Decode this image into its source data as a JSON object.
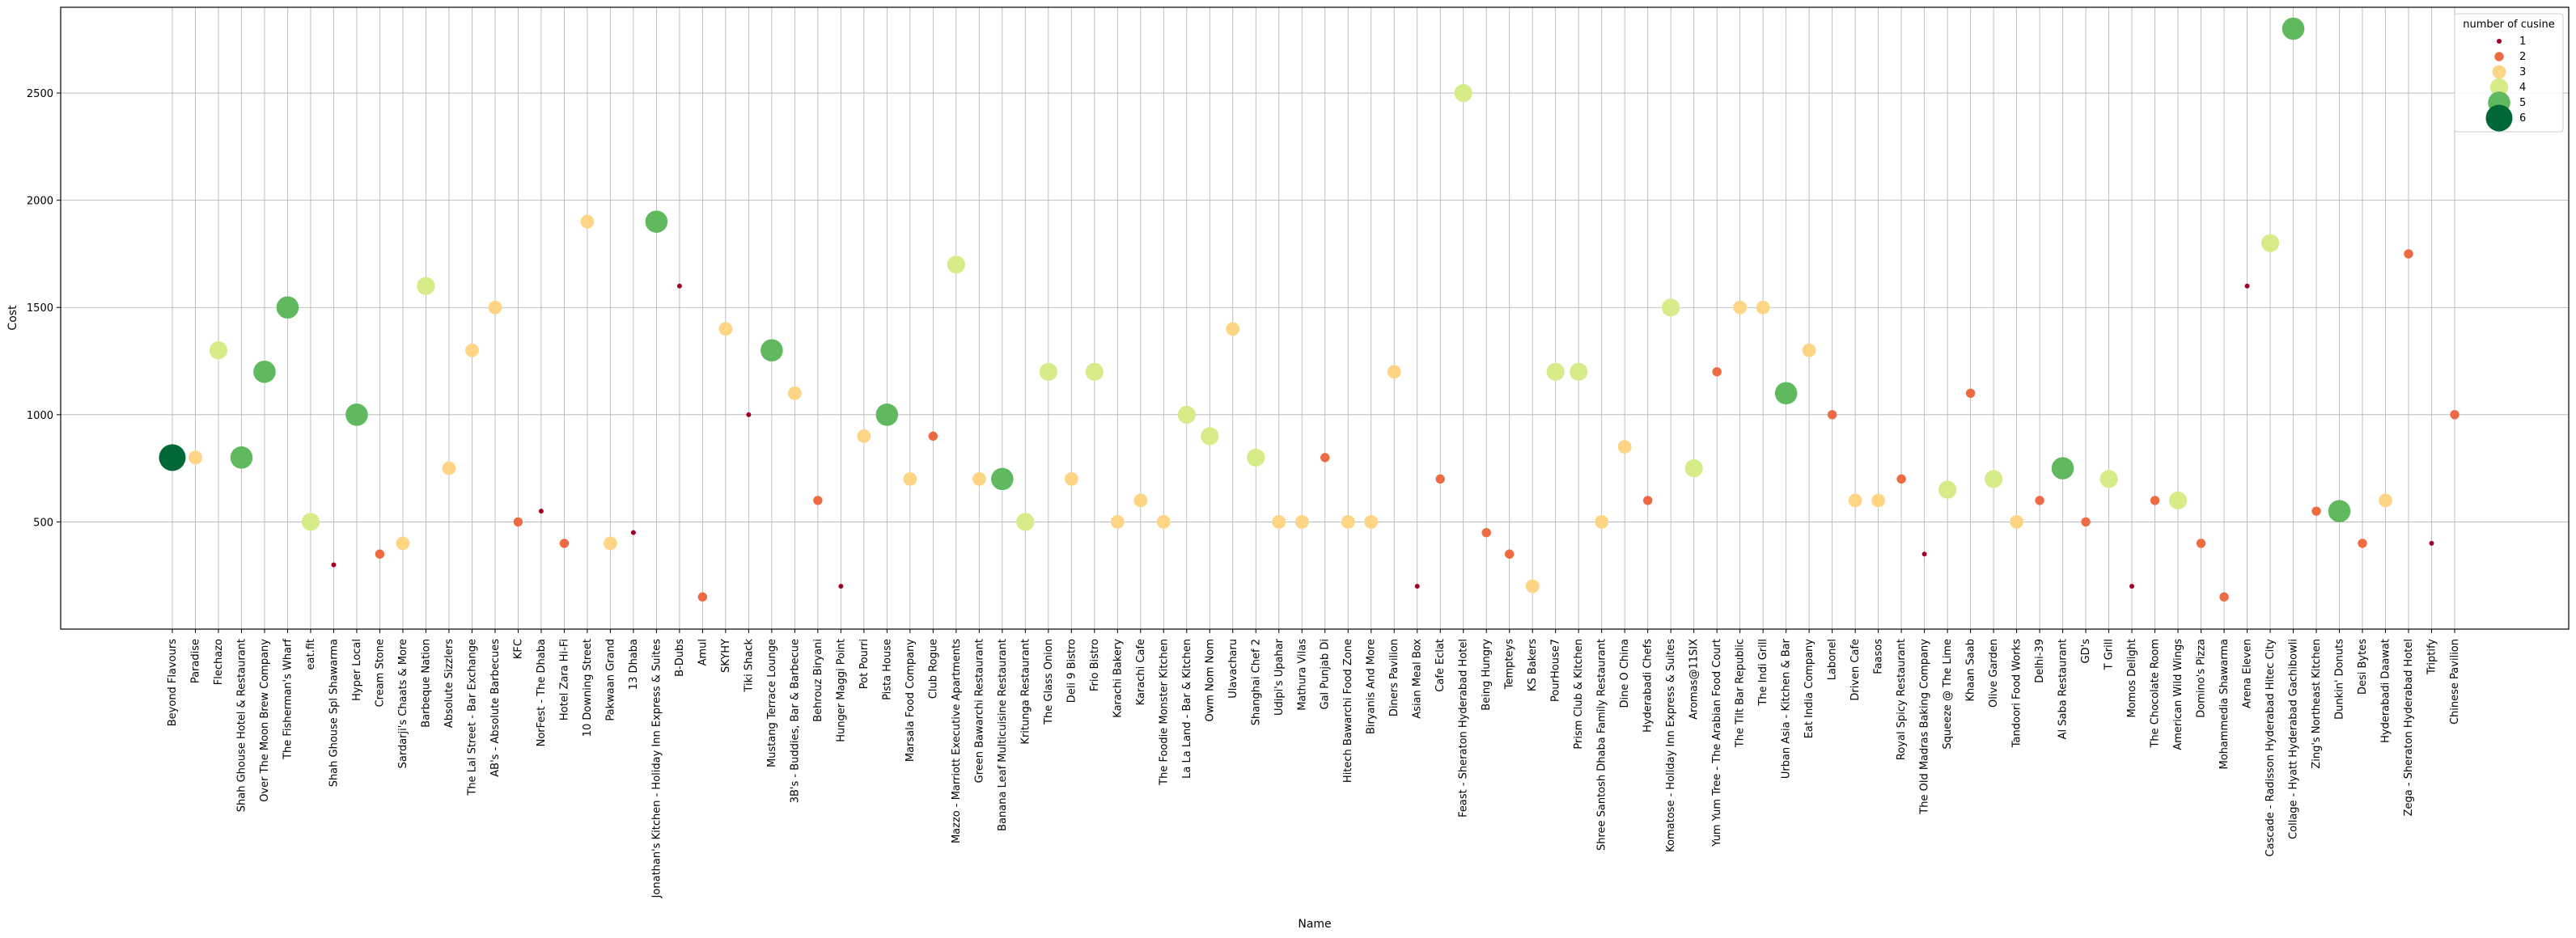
{
  "chart_data": {
    "type": "scatter",
    "title": "",
    "xlabel": "Name",
    "ylabel": "Cost",
    "ylim": [
      0,
      2900
    ],
    "yticks": [
      500,
      1000,
      1500,
      2000,
      2500
    ],
    "grid": true,
    "legend": {
      "title": "number of cusine",
      "placement": "top-right",
      "entries": [
        {
          "label": "1",
          "value": 1,
          "color": "#a50026"
        },
        {
          "label": "2",
          "value": 2,
          "color": "#ee6a43"
        },
        {
          "label": "3",
          "value": 3,
          "color": "#fdd584"
        },
        {
          "label": "4",
          "value": 4,
          "color": "#d5ec89"
        },
        {
          "label": "5",
          "value": 5,
          "color": "#60b95f"
        },
        {
          "label": "6",
          "value": 6,
          "color": "#006837"
        }
      ]
    },
    "points": [
      {
        "name": "Beyond Flavours",
        "cost": 800,
        "cuisines": 6
      },
      {
        "name": "Paradise",
        "cost": 800,
        "cuisines": 3
      },
      {
        "name": "Flechazo",
        "cost": 1300,
        "cuisines": 4
      },
      {
        "name": "Shah Ghouse Hotel & Restaurant",
        "cost": 800,
        "cuisines": 5
      },
      {
        "name": "Over The Moon Brew Company",
        "cost": 1200,
        "cuisines": 5
      },
      {
        "name": "The Fisherman's Wharf",
        "cost": 1500,
        "cuisines": 5
      },
      {
        "name": "eat.fit",
        "cost": 500,
        "cuisines": 4
      },
      {
        "name": "Shah Ghouse Spl Shawarma",
        "cost": 300,
        "cuisines": 1
      },
      {
        "name": "Hyper Local",
        "cost": 1000,
        "cuisines": 5
      },
      {
        "name": "Cream Stone",
        "cost": 350,
        "cuisines": 2
      },
      {
        "name": "Sardarji's Chaats & More",
        "cost": 400,
        "cuisines": 3
      },
      {
        "name": "Barbeque Nation",
        "cost": 1600,
        "cuisines": 4
      },
      {
        "name": "Absolute Sizzlers",
        "cost": 750,
        "cuisines": 3
      },
      {
        "name": "The Lal Street - Bar Exchange",
        "cost": 1300,
        "cuisines": 3
      },
      {
        "name": "AB's - Absolute Barbecues",
        "cost": 1500,
        "cuisines": 3
      },
      {
        "name": "KFC",
        "cost": 500,
        "cuisines": 2
      },
      {
        "name": "NorFest - The Dhaba",
        "cost": 550,
        "cuisines": 1
      },
      {
        "name": "Hotel Zara Hi-Fi",
        "cost": 400,
        "cuisines": 2
      },
      {
        "name": "10 Downing Street",
        "cost": 1900,
        "cuisines": 3
      },
      {
        "name": "Pakwaan Grand",
        "cost": 400,
        "cuisines": 3
      },
      {
        "name": "13 Dhaba",
        "cost": 450,
        "cuisines": 1
      },
      {
        "name": "Jonathan's Kitchen - Holiday Inn Express & Suites",
        "cost": 1900,
        "cuisines": 5
      },
      {
        "name": "B-Dubs",
        "cost": 1600,
        "cuisines": 1
      },
      {
        "name": "Amul",
        "cost": 150,
        "cuisines": 2
      },
      {
        "name": "SKYHY",
        "cost": 1400,
        "cuisines": 3
      },
      {
        "name": "Tiki Shack",
        "cost": 1000,
        "cuisines": 1
      },
      {
        "name": "Mustang Terrace Lounge",
        "cost": 1300,
        "cuisines": 5
      },
      {
        "name": "3B's - Buddies, Bar & Barbecue",
        "cost": 1100,
        "cuisines": 3
      },
      {
        "name": "Behrouz Biryani",
        "cost": 600,
        "cuisines": 2
      },
      {
        "name": "Hunger Maggi Point",
        "cost": 200,
        "cuisines": 1
      },
      {
        "name": "Pot Pourri",
        "cost": 900,
        "cuisines": 3
      },
      {
        "name": "Pista House",
        "cost": 1000,
        "cuisines": 5
      },
      {
        "name": "Marsala Food Company",
        "cost": 700,
        "cuisines": 3
      },
      {
        "name": "Club Rogue",
        "cost": 900,
        "cuisines": 2
      },
      {
        "name": "Mazzo - Marriott Executive Apartments",
        "cost": 1700,
        "cuisines": 4
      },
      {
        "name": "Green Bawarchi Restaurant",
        "cost": 700,
        "cuisines": 3
      },
      {
        "name": "Banana Leaf Multicuisine Restaurant",
        "cost": 700,
        "cuisines": 5
      },
      {
        "name": "Kritunga Restaurant",
        "cost": 500,
        "cuisines": 4
      },
      {
        "name": "The Glass Onion",
        "cost": 1200,
        "cuisines": 4
      },
      {
        "name": "Deli 9 Bistro",
        "cost": 700,
        "cuisines": 3
      },
      {
        "name": "Frio Bistro",
        "cost": 1200,
        "cuisines": 4
      },
      {
        "name": "Karachi Bakery",
        "cost": 500,
        "cuisines": 3
      },
      {
        "name": "Karachi Cafe",
        "cost": 600,
        "cuisines": 3
      },
      {
        "name": "The Foodie Monster Kitchen",
        "cost": 500,
        "cuisines": 3
      },
      {
        "name": "La La Land - Bar & Kitchen",
        "cost": 1000,
        "cuisines": 4
      },
      {
        "name": "Owm Nom Nom",
        "cost": 900,
        "cuisines": 4
      },
      {
        "name": "Ulavacharu",
        "cost": 1400,
        "cuisines": 3
      },
      {
        "name": "Shanghai Chef 2",
        "cost": 800,
        "cuisines": 4
      },
      {
        "name": "Udipi's Upahar",
        "cost": 500,
        "cuisines": 3
      },
      {
        "name": "Mathura Vilas",
        "cost": 500,
        "cuisines": 3
      },
      {
        "name": "Gal Punjab Di",
        "cost": 800,
        "cuisines": 2
      },
      {
        "name": "Hitech Bawarchi Food Zone",
        "cost": 500,
        "cuisines": 3
      },
      {
        "name": "Biryanis And More",
        "cost": 500,
        "cuisines": 3
      },
      {
        "name": "Diners Pavilion",
        "cost": 1200,
        "cuisines": 3
      },
      {
        "name": "Asian Meal Box",
        "cost": 200,
        "cuisines": 1
      },
      {
        "name": "Cafe Eclat",
        "cost": 700,
        "cuisines": 2
      },
      {
        "name": "Feast - Sheraton Hyderabad Hotel",
        "cost": 2500,
        "cuisines": 4
      },
      {
        "name": "Being Hungry",
        "cost": 450,
        "cuisines": 2
      },
      {
        "name": "Tempteys",
        "cost": 350,
        "cuisines": 2
      },
      {
        "name": "KS Bakers",
        "cost": 200,
        "cuisines": 3
      },
      {
        "name": "PourHouse7",
        "cost": 1200,
        "cuisines": 4
      },
      {
        "name": "Prism Club & Kitchen",
        "cost": 1200,
        "cuisines": 4
      },
      {
        "name": "Shree Santosh Dhaba Family Restaurant",
        "cost": 500,
        "cuisines": 3
      },
      {
        "name": "Dine O China",
        "cost": 850,
        "cuisines": 3
      },
      {
        "name": "Hyderabadi Chefs",
        "cost": 600,
        "cuisines": 2
      },
      {
        "name": "Komatose - Holiday Inn Express & Suites",
        "cost": 1500,
        "cuisines": 4
      },
      {
        "name": "Aromas@11SIX",
        "cost": 750,
        "cuisines": 4
      },
      {
        "name": "Yum Yum Tree - The Arabian Food Court",
        "cost": 1200,
        "cuisines": 2
      },
      {
        "name": "The Tilt Bar Republic",
        "cost": 1500,
        "cuisines": 3
      },
      {
        "name": "The Indi Grill",
        "cost": 1500,
        "cuisines": 3
      },
      {
        "name": "Urban Asia - Kitchen & Bar",
        "cost": 1100,
        "cuisines": 5
      },
      {
        "name": "Eat India Company",
        "cost": 1300,
        "cuisines": 3
      },
      {
        "name": "Labonel",
        "cost": 1000,
        "cuisines": 2
      },
      {
        "name": "Driven Cafe",
        "cost": 600,
        "cuisines": 3
      },
      {
        "name": "Faasos",
        "cost": 600,
        "cuisines": 3
      },
      {
        "name": "Royal Spicy Restaurant",
        "cost": 700,
        "cuisines": 2
      },
      {
        "name": "The Old Madras Baking Company",
        "cost": 350,
        "cuisines": 1
      },
      {
        "name": "Squeeze @ The Lime",
        "cost": 650,
        "cuisines": 4
      },
      {
        "name": "Khaan Saab",
        "cost": 1100,
        "cuisines": 2
      },
      {
        "name": "Olive Garden",
        "cost": 700,
        "cuisines": 4
      },
      {
        "name": "Tandoori Food Works",
        "cost": 500,
        "cuisines": 3
      },
      {
        "name": "Delhi-39",
        "cost": 600,
        "cuisines": 2
      },
      {
        "name": "Al Saba Restaurant",
        "cost": 750,
        "cuisines": 5
      },
      {
        "name": "GD's",
        "cost": 500,
        "cuisines": 2
      },
      {
        "name": "T Grill",
        "cost": 700,
        "cuisines": 4
      },
      {
        "name": "Momos Delight",
        "cost": 200,
        "cuisines": 1
      },
      {
        "name": "The Chocolate Room",
        "cost": 600,
        "cuisines": 2
      },
      {
        "name": "American Wild Wings",
        "cost": 600,
        "cuisines": 4
      },
      {
        "name": "Domino's Pizza",
        "cost": 400,
        "cuisines": 2
      },
      {
        "name": "Mohammedia Shawarma",
        "cost": 150,
        "cuisines": 2
      },
      {
        "name": "Arena Eleven",
        "cost": 1600,
        "cuisines": 1
      },
      {
        "name": "Cascade - Radisson Hyderabad Hitec City",
        "cost": 1800,
        "cuisines": 4
      },
      {
        "name": "Collage - Hyatt Hyderabad Gachibowli",
        "cost": 2800,
        "cuisines": 5
      },
      {
        "name": "Zing's Northeast Kitchen",
        "cost": 550,
        "cuisines": 2
      },
      {
        "name": "Dunkin' Donuts",
        "cost": 550,
        "cuisines": 5
      },
      {
        "name": "Desi Bytes",
        "cost": 400,
        "cuisines": 2
      },
      {
        "name": "Hyderabadi Daawat",
        "cost": 600,
        "cuisines": 3
      },
      {
        "name": "Zega - Sheraton Hyderabad Hotel",
        "cost": 1750,
        "cuisines": 2
      },
      {
        "name": "Triptify",
        "cost": 400,
        "cuisines": 1
      },
      {
        "name": "Chinese Pavilion",
        "cost": 1000,
        "cuisines": 2
      }
    ]
  }
}
